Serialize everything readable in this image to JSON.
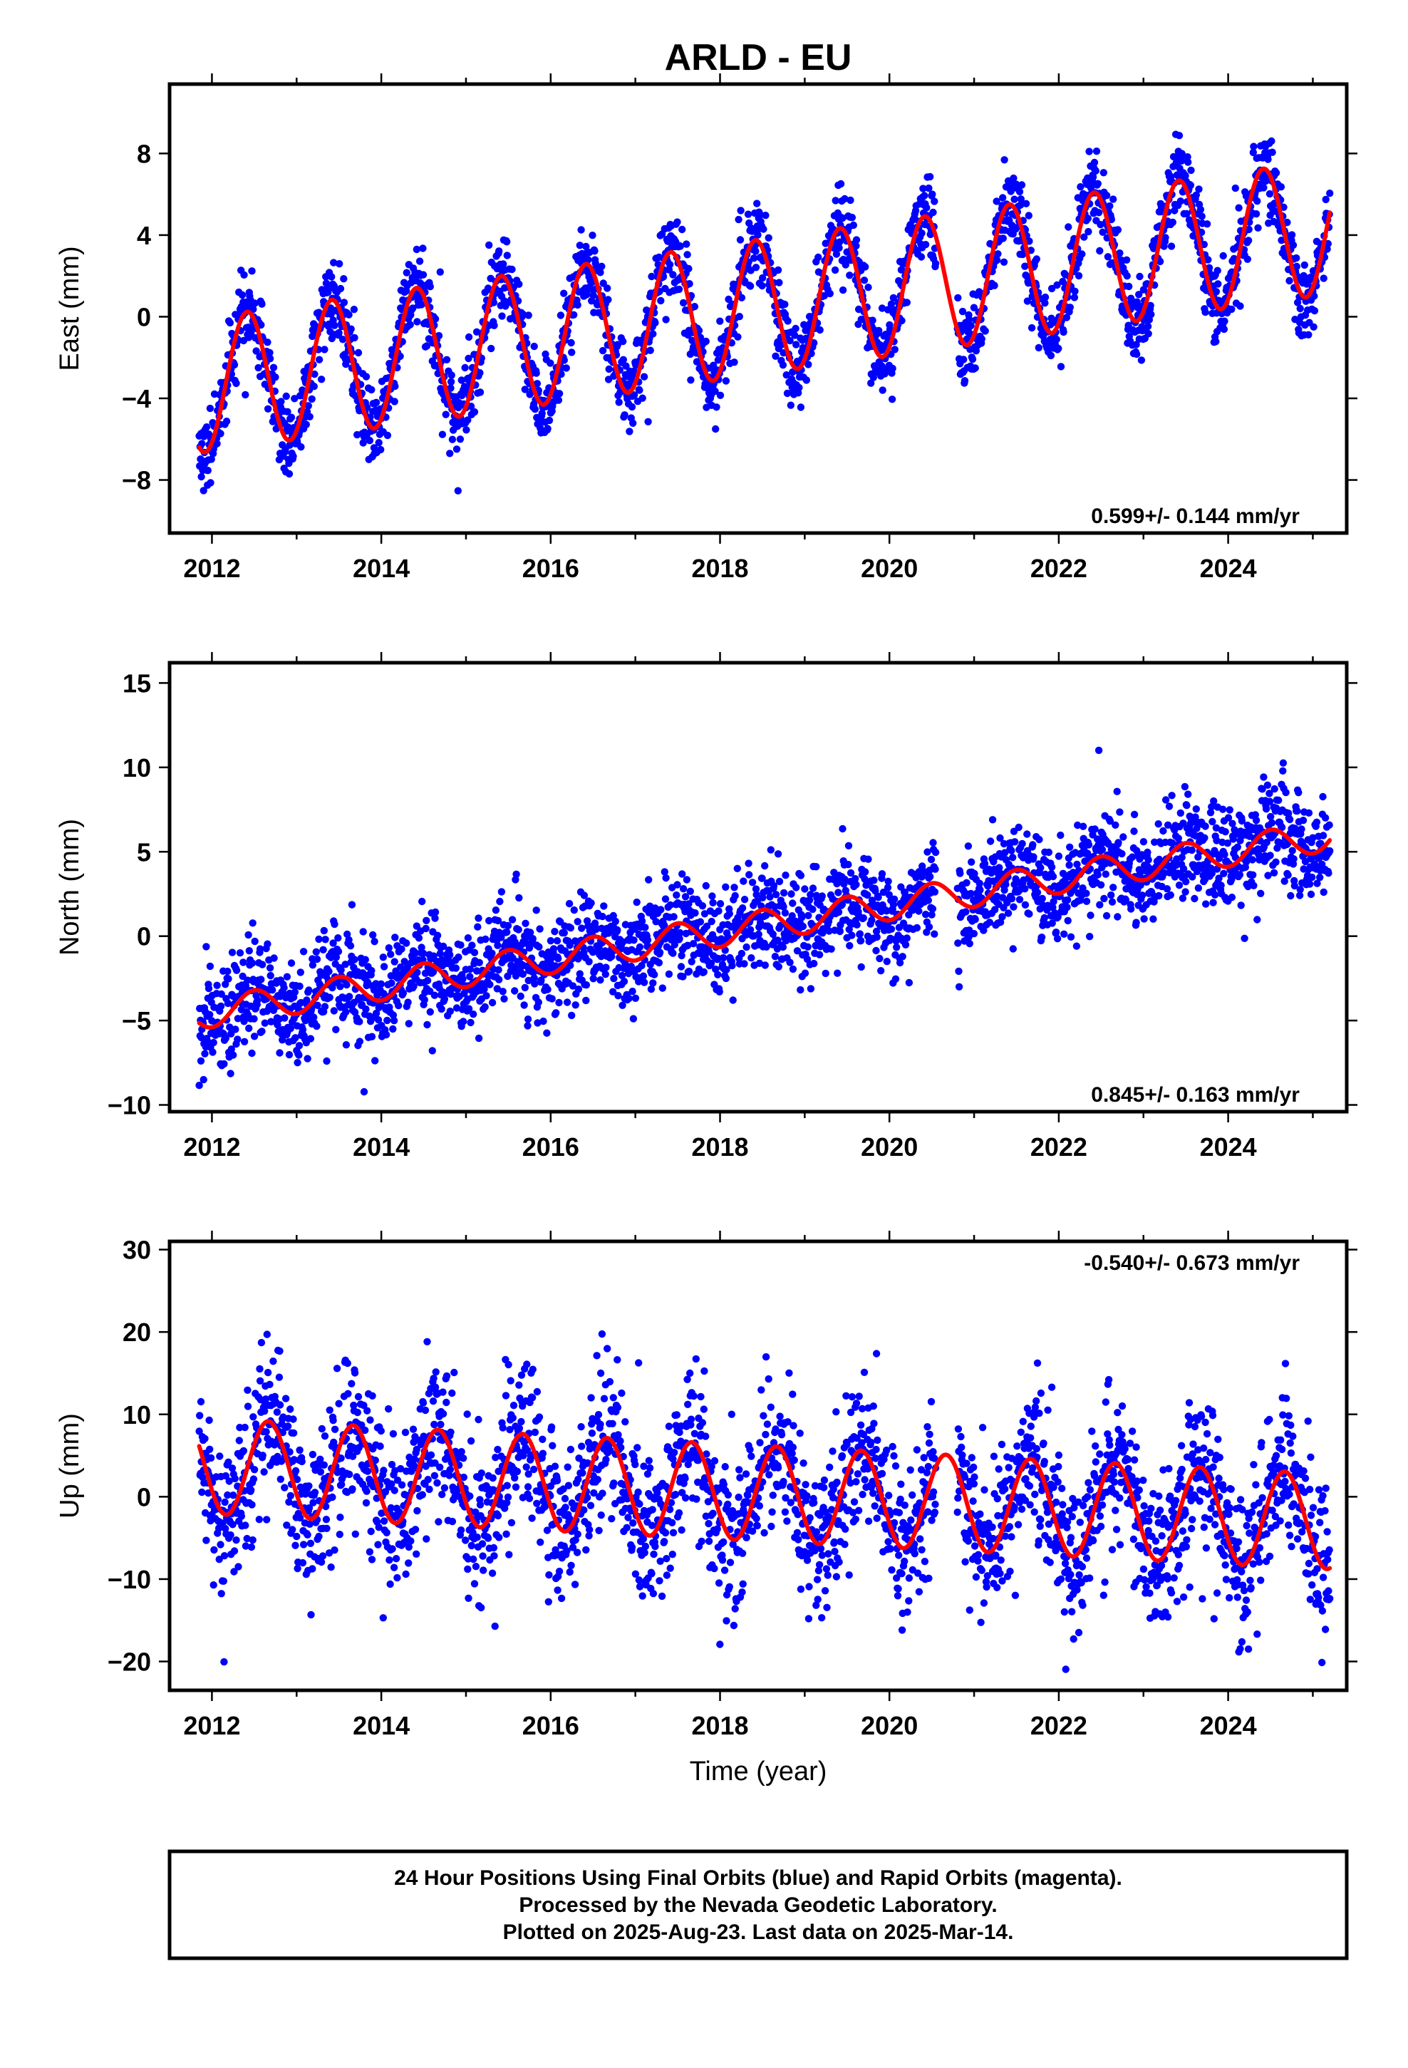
{
  "figure": {
    "title": "ARLD - EU",
    "caption": [
      "24 Hour Positions Using Final Orbits (blue) and Rapid Orbits (magenta).",
      "Processed by the Nevada Geodetic Laboratory.",
      "Plotted on 2025-Aug-23. Last data on 2025-Mar-14."
    ],
    "colors": {
      "points": "#0000ff",
      "model": "#ff0000",
      "frame": "#000000"
    }
  },
  "chart_data": [
    {
      "type": "scatter",
      "component": "east",
      "ylabel": "East (mm)",
      "xlabel": "",
      "xlim": [
        2011.5,
        2025.4
      ],
      "ylim": [
        -10.6,
        11.4
      ],
      "x_ticks": [
        2012,
        2014,
        2016,
        2018,
        2020,
        2022,
        2024
      ],
      "y_ticks": [
        -8,
        -4,
        0,
        4,
        8
      ],
      "y_tick_labels": [
        "−8",
        "−4",
        "0",
        "4",
        "8"
      ],
      "rate_label": "0.599+/- 0.144 mm/yr",
      "rate_position": "bottom-right",
      "grid": false,
      "data_span": [
        2011.85,
        2025.2
      ],
      "series": [
        {
          "kind": "daily-positions",
          "color": "#0000ff",
          "values_mm": {
            "approx_trend_at_2012": -3.2,
            "approx_trend_at_2025": 4.4,
            "annual_amplitude": 3.4,
            "scatter_sd": 1.0
          }
        },
        {
          "kind": "model-fit",
          "color": "#ff0000",
          "values_mm": {
            "trend_at_2012": -3.3,
            "trend_at_2025": 4.3,
            "annual_amplitude": 3.3,
            "phase_peak_month": 5.5
          }
        }
      ],
      "sample_model_points": [
        {
          "x": 2011.9,
          "y": -6.8
        },
        {
          "x": 2012.4,
          "y": -0.4
        },
        {
          "x": 2012.9,
          "y": -6.3
        },
        {
          "x": 2013.4,
          "y": 0.1
        },
        {
          "x": 2014.4,
          "y": 0.8
        },
        {
          "x": 2016.4,
          "y": 1.9
        },
        {
          "x": 2018.4,
          "y": 3.1
        },
        {
          "x": 2020.4,
          "y": 4.3
        },
        {
          "x": 2022.4,
          "y": 5.5
        },
        {
          "x": 2024.4,
          "y": 6.8
        },
        {
          "x": 2024.9,
          "y": 0.7
        },
        {
          "x": 2025.2,
          "y": 4.6
        }
      ]
    },
    {
      "type": "scatter",
      "component": "north",
      "ylabel": "North (mm)",
      "xlabel": "",
      "xlim": [
        2011.5,
        2025.4
      ],
      "ylim": [
        -10.4,
        16.2
      ],
      "x_ticks": [
        2012,
        2014,
        2016,
        2018,
        2020,
        2022,
        2024
      ],
      "y_ticks": [
        -10,
        -5,
        0,
        5,
        10,
        15
      ],
      "y_tick_labels": [
        "−10",
        "−5",
        "0",
        "5",
        "10",
        "15"
      ],
      "rate_label": "0.845+/- 0.163 mm/yr",
      "rate_position": "bottom-right",
      "grid": false,
      "data_span": [
        2011.85,
        2025.2
      ],
      "series": [
        {
          "kind": "daily-positions",
          "color": "#0000ff",
          "values_mm": {
            "approx_trend_at_2012": -4.5,
            "approx_trend_at_2025": 5.8,
            "annual_amplitude": 0.9,
            "scatter_sd": 1.5
          }
        },
        {
          "kind": "model-fit",
          "color": "#ff0000",
          "values_mm": {
            "trend_at_2012": -4.5,
            "trend_at_2025": 5.8,
            "annual_amplitude": 0.9,
            "phase_peak_month": 6.5
          }
        }
      ],
      "sample_model_points": [
        {
          "x": 2012.0,
          "y": -4.6
        },
        {
          "x": 2014.0,
          "y": -3.2
        },
        {
          "x": 2016.0,
          "y": -1.8
        },
        {
          "x": 2018.0,
          "y": 0.2
        },
        {
          "x": 2020.0,
          "y": 1.8
        },
        {
          "x": 2022.0,
          "y": 3.6
        },
        {
          "x": 2024.0,
          "y": 5.0
        },
        {
          "x": 2025.0,
          "y": 6.4
        }
      ]
    },
    {
      "type": "scatter",
      "component": "up",
      "ylabel": "Up (mm)",
      "xlabel": "Time (year)",
      "xlim": [
        2011.5,
        2025.4
      ],
      "ylim": [
        -23.5,
        31
      ],
      "x_ticks": [
        2012,
        2014,
        2016,
        2018,
        2020,
        2022,
        2024
      ],
      "y_ticks": [
        -20,
        -10,
        0,
        10,
        20,
        30
      ],
      "y_tick_labels": [
        "−20",
        "−10",
        "0",
        "10",
        "20",
        "30"
      ],
      "rate_label": "-0.540+/- 0.673 mm/yr",
      "rate_position": "top-right",
      "grid": false,
      "data_span": [
        2011.85,
        2025.2
      ],
      "series": [
        {
          "kind": "daily-positions",
          "color": "#0000ff",
          "values_mm": {
            "approx_trend_at_2012": 3.7,
            "approx_trend_at_2025": -2.9,
            "annual_amplitude": 5.8,
            "scatter_sd": 4.5
          }
        },
        {
          "kind": "model-fit",
          "color": "#ff0000",
          "values_mm": {
            "trend_at_2012": 3.7,
            "trend_at_2025": -2.9,
            "annual_amplitude": 5.8,
            "phase_peak_month": 8.5
          }
        }
      ],
      "sample_model_points": [
        {
          "x": 2011.9,
          "y": 5.5
        },
        {
          "x": 2012.7,
          "y": 9.3
        },
        {
          "x": 2013.2,
          "y": -1.6
        },
        {
          "x": 2016.7,
          "y": 7.2
        },
        {
          "x": 2020.7,
          "y": 5.0
        },
        {
          "x": 2022.7,
          "y": 3.9
        },
        {
          "x": 2024.7,
          "y": 2.8
        },
        {
          "x": 2025.2,
          "y": -7.8
        }
      ]
    }
  ]
}
